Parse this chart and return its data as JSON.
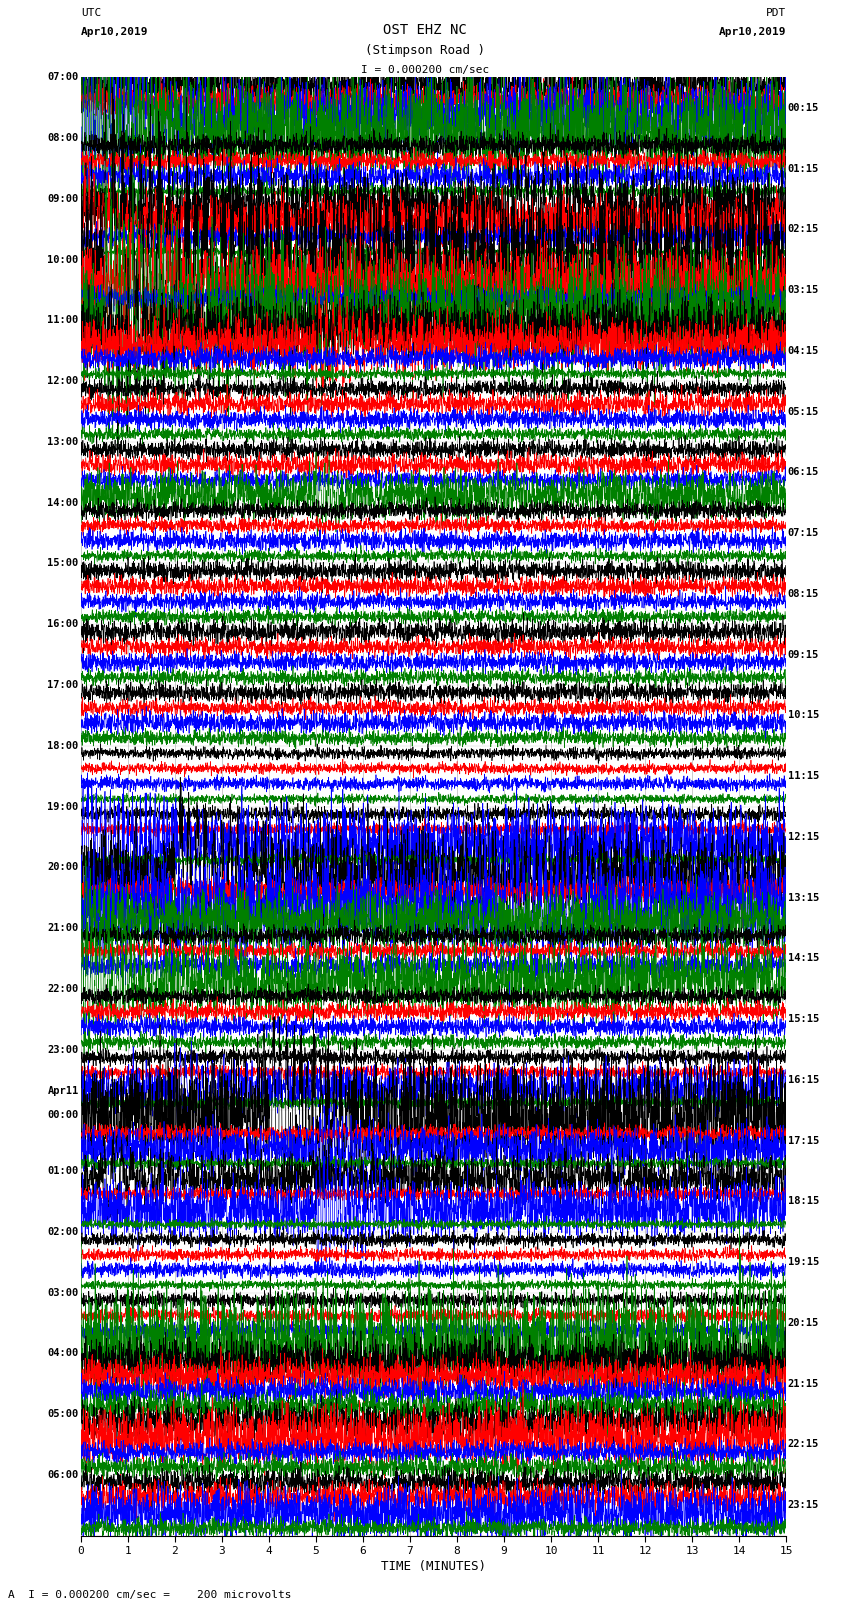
{
  "title_line1": "OST EHZ NC",
  "title_line2": "(Stimpson Road )",
  "scale_label": "I = 0.000200 cm/sec",
  "footer_label": "A  I = 0.000200 cm/sec =    200 microvolts",
  "utc_label": "UTC",
  "utc_date": "Apr10,2019",
  "pdt_label": "PDT",
  "pdt_date": "Apr10,2019",
  "xlabel": "TIME (MINUTES)",
  "background_color": "#ffffff",
  "plot_bg_color": "#ffffff",
  "grid_color": "#888888",
  "colors": [
    "black",
    "red",
    "blue",
    "green"
  ],
  "n_groups": 24,
  "traces_per_group": 4,
  "xlim": [
    0,
    15
  ],
  "xticks": [
    0,
    1,
    2,
    3,
    4,
    5,
    6,
    7,
    8,
    9,
    10,
    11,
    12,
    13,
    14,
    15
  ],
  "left_time_labels": [
    "07:00",
    "08:00",
    "09:00",
    "10:00",
    "11:00",
    "12:00",
    "13:00",
    "14:00",
    "15:00",
    "16:00",
    "17:00",
    "18:00",
    "19:00",
    "20:00",
    "21:00",
    "22:00",
    "23:00",
    "00:00",
    "01:00",
    "02:00",
    "03:00",
    "04:00",
    "05:00",
    "06:00"
  ],
  "left_special_labels": {
    "17": "Apr11"
  },
  "right_time_labels": [
    "00:15",
    "01:15",
    "02:15",
    "03:15",
    "04:15",
    "05:15",
    "06:15",
    "07:15",
    "08:15",
    "09:15",
    "10:15",
    "11:15",
    "12:15",
    "13:15",
    "14:15",
    "15:15",
    "16:15",
    "17:15",
    "18:15",
    "19:15",
    "20:15",
    "21:15",
    "22:15",
    "23:15"
  ],
  "figsize": [
    8.5,
    16.13
  ],
  "dpi": 100,
  "seed": 12345
}
